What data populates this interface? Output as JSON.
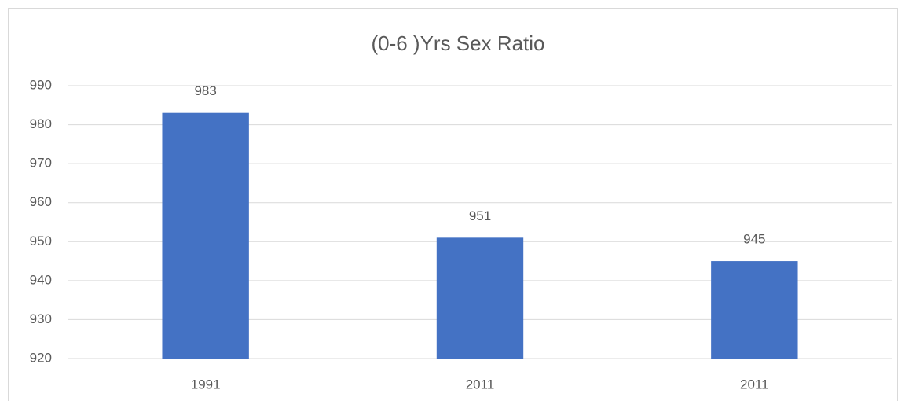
{
  "chart_data": {
    "type": "bar",
    "title": "(0-6 )Yrs Sex Ratio",
    "categories": [
      "1991",
      "2011",
      "2011"
    ],
    "values": [
      983,
      951,
      945
    ],
    "color": "#4472c4",
    "ylim": [
      920,
      990
    ],
    "yticks": [
      920,
      930,
      940,
      950,
      960,
      970,
      980,
      990
    ],
    "grid": true,
    "data_labels": true
  }
}
